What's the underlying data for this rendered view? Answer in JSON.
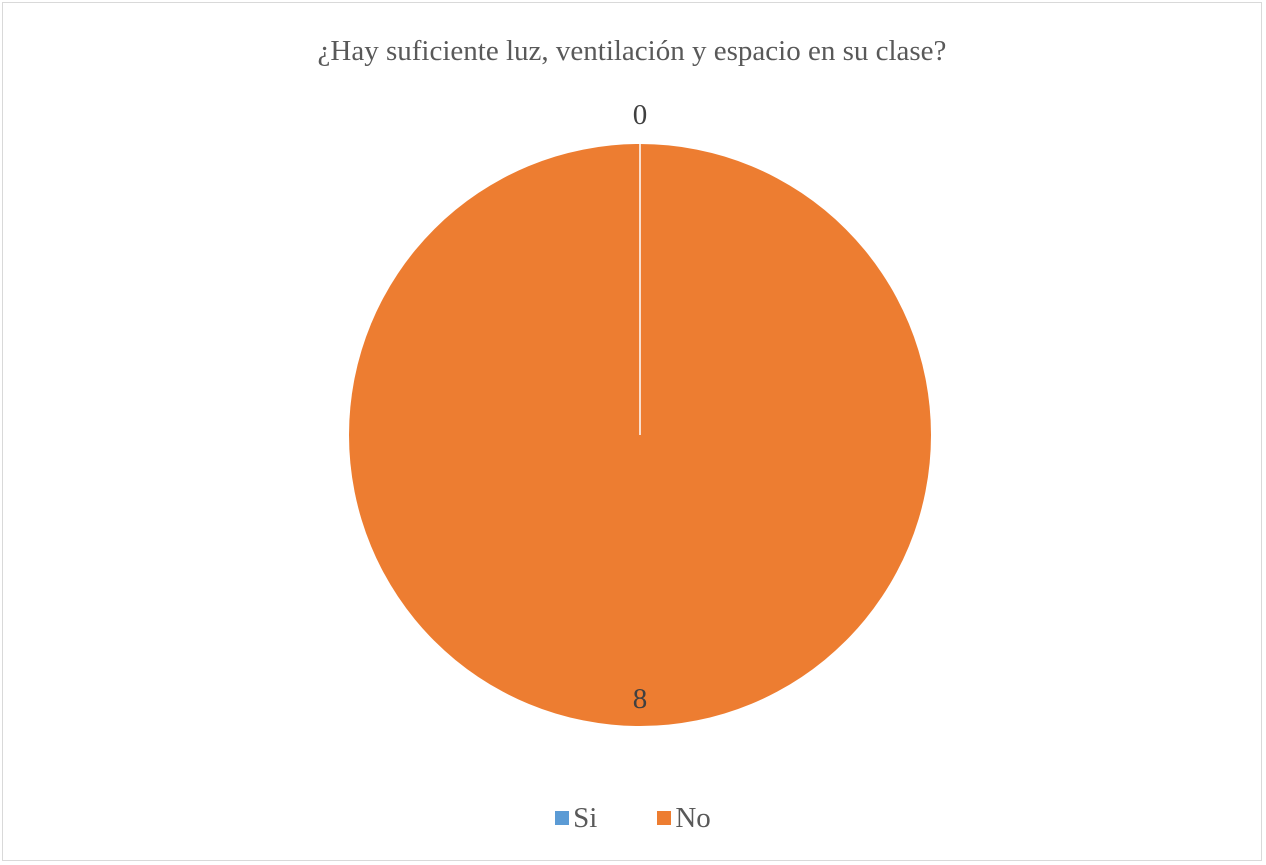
{
  "chart_data": {
    "type": "pie",
    "title": "¿Hay suficiente luz, ventilación y espacio en su clase?",
    "categories": [
      "Si",
      "No"
    ],
    "values": [
      0,
      8
    ],
    "data_labels": [
      "0",
      "8"
    ],
    "colors": [
      "#5b9bd5",
      "#ed7d31"
    ],
    "legend_position": "bottom"
  }
}
